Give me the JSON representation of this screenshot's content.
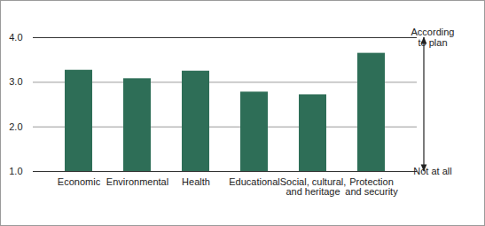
{
  "chart_data": {
    "type": "bar",
    "categories": [
      "Economic",
      "Environmental",
      "Health",
      "Educational",
      "Social, cultural,\nand heritage",
      "Protection\nand security"
    ],
    "values": [
      3.27,
      3.08,
      3.25,
      2.78,
      2.72,
      3.65
    ],
    "color": "#2e6e57",
    "ylim": [
      1,
      4
    ],
    "yticks": [
      1,
      2,
      3,
      4
    ],
    "grid": true,
    "annotations": [
      {
        "text": "According\nto plan",
        "y": 4
      },
      {
        "text": "Not at all",
        "y": 1
      }
    ]
  }
}
